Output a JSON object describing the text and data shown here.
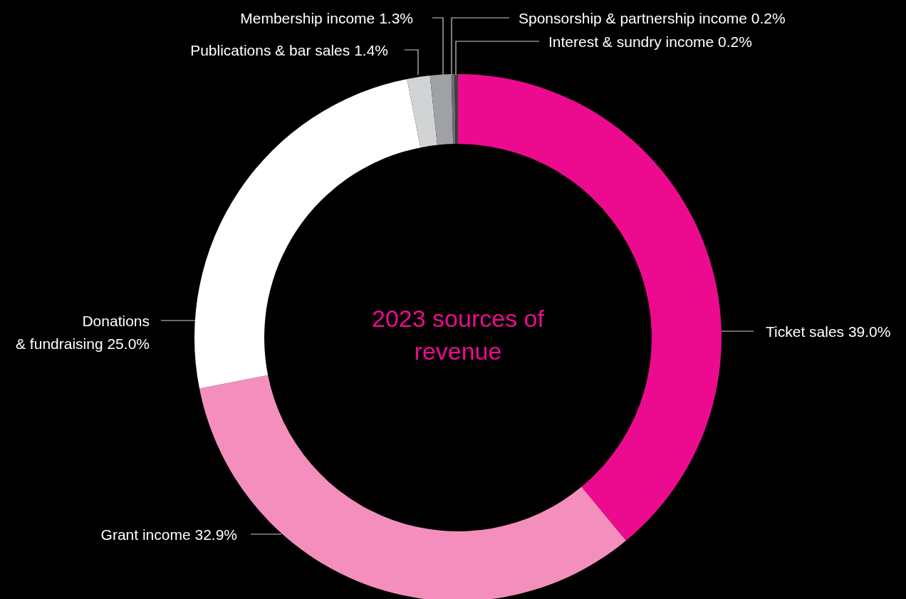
{
  "chart_data": {
    "type": "donut",
    "title": "2023 sources of revenue",
    "categories": [
      "Ticket sales",
      "Grant income",
      "Donations & fundraising",
      "Publications & bar sales",
      "Membership income",
      "Sponsorship & partnership income",
      "Interest & sundry income"
    ],
    "values": [
      39.0,
      32.9,
      25.0,
      1.4,
      1.3,
      0.2,
      0.2
    ],
    "colors": [
      "#ec0b8f",
      "#f48fbd",
      "#ffffff",
      "#d1d3d4",
      "#a0a1a5",
      "#6d6e71",
      "#414042"
    ],
    "value_labels": [
      "39.0%",
      "32.9%",
      "25.0%",
      "1.4%",
      "1.3%",
      "0.2%",
      "0.2%"
    ],
    "legend": false
  }
}
